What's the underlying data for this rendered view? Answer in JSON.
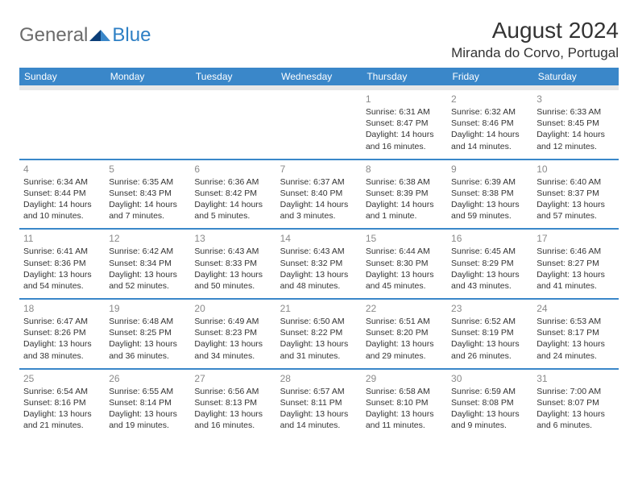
{
  "brand": {
    "general": "General",
    "blue": "Blue"
  },
  "title": "August 2024",
  "location": "Miranda do Corvo, Portugal",
  "day_headers": [
    "Sunday",
    "Monday",
    "Tuesday",
    "Wednesday",
    "Thursday",
    "Friday",
    "Saturday"
  ],
  "colors": {
    "header_bg": "#3a87c9",
    "header_text": "#ffffff",
    "daynum": "#8a8a8a",
    "body_text": "#333333",
    "logo_gray": "#6b6b6b",
    "logo_blue": "#2d7fc4",
    "sep_gray": "#e8e8e8"
  },
  "weeks": [
    [
      {
        "n": "",
        "sunrise": "",
        "sunset": "",
        "daylight": ""
      },
      {
        "n": "",
        "sunrise": "",
        "sunset": "",
        "daylight": ""
      },
      {
        "n": "",
        "sunrise": "",
        "sunset": "",
        "daylight": ""
      },
      {
        "n": "",
        "sunrise": "",
        "sunset": "",
        "daylight": ""
      },
      {
        "n": "1",
        "sunrise": "Sunrise: 6:31 AM",
        "sunset": "Sunset: 8:47 PM",
        "daylight": "Daylight: 14 hours and 16 minutes."
      },
      {
        "n": "2",
        "sunrise": "Sunrise: 6:32 AM",
        "sunset": "Sunset: 8:46 PM",
        "daylight": "Daylight: 14 hours and 14 minutes."
      },
      {
        "n": "3",
        "sunrise": "Sunrise: 6:33 AM",
        "sunset": "Sunset: 8:45 PM",
        "daylight": "Daylight: 14 hours and 12 minutes."
      }
    ],
    [
      {
        "n": "4",
        "sunrise": "Sunrise: 6:34 AM",
        "sunset": "Sunset: 8:44 PM",
        "daylight": "Daylight: 14 hours and 10 minutes."
      },
      {
        "n": "5",
        "sunrise": "Sunrise: 6:35 AM",
        "sunset": "Sunset: 8:43 PM",
        "daylight": "Daylight: 14 hours and 7 minutes."
      },
      {
        "n": "6",
        "sunrise": "Sunrise: 6:36 AM",
        "sunset": "Sunset: 8:42 PM",
        "daylight": "Daylight: 14 hours and 5 minutes."
      },
      {
        "n": "7",
        "sunrise": "Sunrise: 6:37 AM",
        "sunset": "Sunset: 8:40 PM",
        "daylight": "Daylight: 14 hours and 3 minutes."
      },
      {
        "n": "8",
        "sunrise": "Sunrise: 6:38 AM",
        "sunset": "Sunset: 8:39 PM",
        "daylight": "Daylight: 14 hours and 1 minute."
      },
      {
        "n": "9",
        "sunrise": "Sunrise: 6:39 AM",
        "sunset": "Sunset: 8:38 PM",
        "daylight": "Daylight: 13 hours and 59 minutes."
      },
      {
        "n": "10",
        "sunrise": "Sunrise: 6:40 AM",
        "sunset": "Sunset: 8:37 PM",
        "daylight": "Daylight: 13 hours and 57 minutes."
      }
    ],
    [
      {
        "n": "11",
        "sunrise": "Sunrise: 6:41 AM",
        "sunset": "Sunset: 8:36 PM",
        "daylight": "Daylight: 13 hours and 54 minutes."
      },
      {
        "n": "12",
        "sunrise": "Sunrise: 6:42 AM",
        "sunset": "Sunset: 8:34 PM",
        "daylight": "Daylight: 13 hours and 52 minutes."
      },
      {
        "n": "13",
        "sunrise": "Sunrise: 6:43 AM",
        "sunset": "Sunset: 8:33 PM",
        "daylight": "Daylight: 13 hours and 50 minutes."
      },
      {
        "n": "14",
        "sunrise": "Sunrise: 6:43 AM",
        "sunset": "Sunset: 8:32 PM",
        "daylight": "Daylight: 13 hours and 48 minutes."
      },
      {
        "n": "15",
        "sunrise": "Sunrise: 6:44 AM",
        "sunset": "Sunset: 8:30 PM",
        "daylight": "Daylight: 13 hours and 45 minutes."
      },
      {
        "n": "16",
        "sunrise": "Sunrise: 6:45 AM",
        "sunset": "Sunset: 8:29 PM",
        "daylight": "Daylight: 13 hours and 43 minutes."
      },
      {
        "n": "17",
        "sunrise": "Sunrise: 6:46 AM",
        "sunset": "Sunset: 8:27 PM",
        "daylight": "Daylight: 13 hours and 41 minutes."
      }
    ],
    [
      {
        "n": "18",
        "sunrise": "Sunrise: 6:47 AM",
        "sunset": "Sunset: 8:26 PM",
        "daylight": "Daylight: 13 hours and 38 minutes."
      },
      {
        "n": "19",
        "sunrise": "Sunrise: 6:48 AM",
        "sunset": "Sunset: 8:25 PM",
        "daylight": "Daylight: 13 hours and 36 minutes."
      },
      {
        "n": "20",
        "sunrise": "Sunrise: 6:49 AM",
        "sunset": "Sunset: 8:23 PM",
        "daylight": "Daylight: 13 hours and 34 minutes."
      },
      {
        "n": "21",
        "sunrise": "Sunrise: 6:50 AM",
        "sunset": "Sunset: 8:22 PM",
        "daylight": "Daylight: 13 hours and 31 minutes."
      },
      {
        "n": "22",
        "sunrise": "Sunrise: 6:51 AM",
        "sunset": "Sunset: 8:20 PM",
        "daylight": "Daylight: 13 hours and 29 minutes."
      },
      {
        "n": "23",
        "sunrise": "Sunrise: 6:52 AM",
        "sunset": "Sunset: 8:19 PM",
        "daylight": "Daylight: 13 hours and 26 minutes."
      },
      {
        "n": "24",
        "sunrise": "Sunrise: 6:53 AM",
        "sunset": "Sunset: 8:17 PM",
        "daylight": "Daylight: 13 hours and 24 minutes."
      }
    ],
    [
      {
        "n": "25",
        "sunrise": "Sunrise: 6:54 AM",
        "sunset": "Sunset: 8:16 PM",
        "daylight": "Daylight: 13 hours and 21 minutes."
      },
      {
        "n": "26",
        "sunrise": "Sunrise: 6:55 AM",
        "sunset": "Sunset: 8:14 PM",
        "daylight": "Daylight: 13 hours and 19 minutes."
      },
      {
        "n": "27",
        "sunrise": "Sunrise: 6:56 AM",
        "sunset": "Sunset: 8:13 PM",
        "daylight": "Daylight: 13 hours and 16 minutes."
      },
      {
        "n": "28",
        "sunrise": "Sunrise: 6:57 AM",
        "sunset": "Sunset: 8:11 PM",
        "daylight": "Daylight: 13 hours and 14 minutes."
      },
      {
        "n": "29",
        "sunrise": "Sunrise: 6:58 AM",
        "sunset": "Sunset: 8:10 PM",
        "daylight": "Daylight: 13 hours and 11 minutes."
      },
      {
        "n": "30",
        "sunrise": "Sunrise: 6:59 AM",
        "sunset": "Sunset: 8:08 PM",
        "daylight": "Daylight: 13 hours and 9 minutes."
      },
      {
        "n": "31",
        "sunrise": "Sunrise: 7:00 AM",
        "sunset": "Sunset: 8:07 PM",
        "daylight": "Daylight: 13 hours and 6 minutes."
      }
    ]
  ]
}
